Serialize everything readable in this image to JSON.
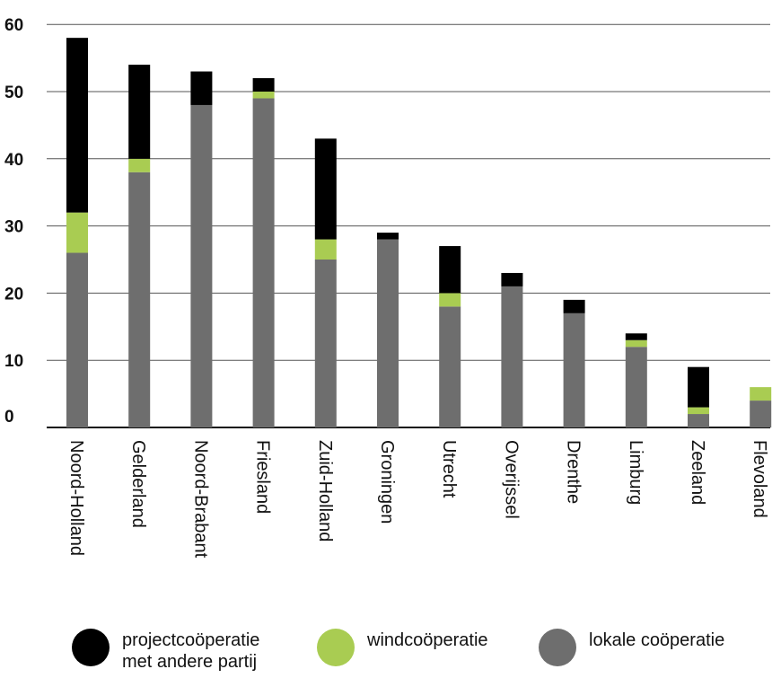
{
  "chart_data": {
    "type": "bar",
    "stacked": true,
    "categories": [
      "Noord-Holland",
      "Gelderland",
      "Noord-Brabant",
      "Friesland",
      "Zuid-Holland",
      "Groningen",
      "Utrecht",
      "Overijssel",
      "Drenthe",
      "Limburg",
      "Zeeland",
      "Flevoland"
    ],
    "series": [
      {
        "name": "lokale coöperatie",
        "color": "#6e6e6e",
        "values": [
          26,
          38,
          48,
          49,
          25,
          28,
          18,
          21,
          17,
          12,
          2,
          4
        ]
      },
      {
        "name": "windcoöperatie",
        "color": "#a9cc52",
        "values": [
          6,
          2,
          0,
          1,
          3,
          0,
          2,
          0,
          0,
          1,
          1,
          2
        ]
      },
      {
        "name": "projectcoöperatie\nmet andere partij",
        "color": "#000000",
        "values": [
          26,
          14,
          5,
          2,
          15,
          1,
          7,
          2,
          2,
          1,
          6,
          0
        ]
      }
    ],
    "yticks": [
      "0",
      "10",
      "20",
      "30",
      "40",
      "50",
      "60"
    ],
    "ylim": [
      0,
      60
    ],
    "grid": "horizontal",
    "legend_position": "bottom"
  },
  "legend": {
    "items": [
      {
        "label": "projectcoöperatie\nmet andere partij",
        "color": "#000000"
      },
      {
        "label": "windcoöperatie",
        "color": "#a9cc52"
      },
      {
        "label": "lokale coöperatie",
        "color": "#6e6e6e"
      }
    ]
  }
}
